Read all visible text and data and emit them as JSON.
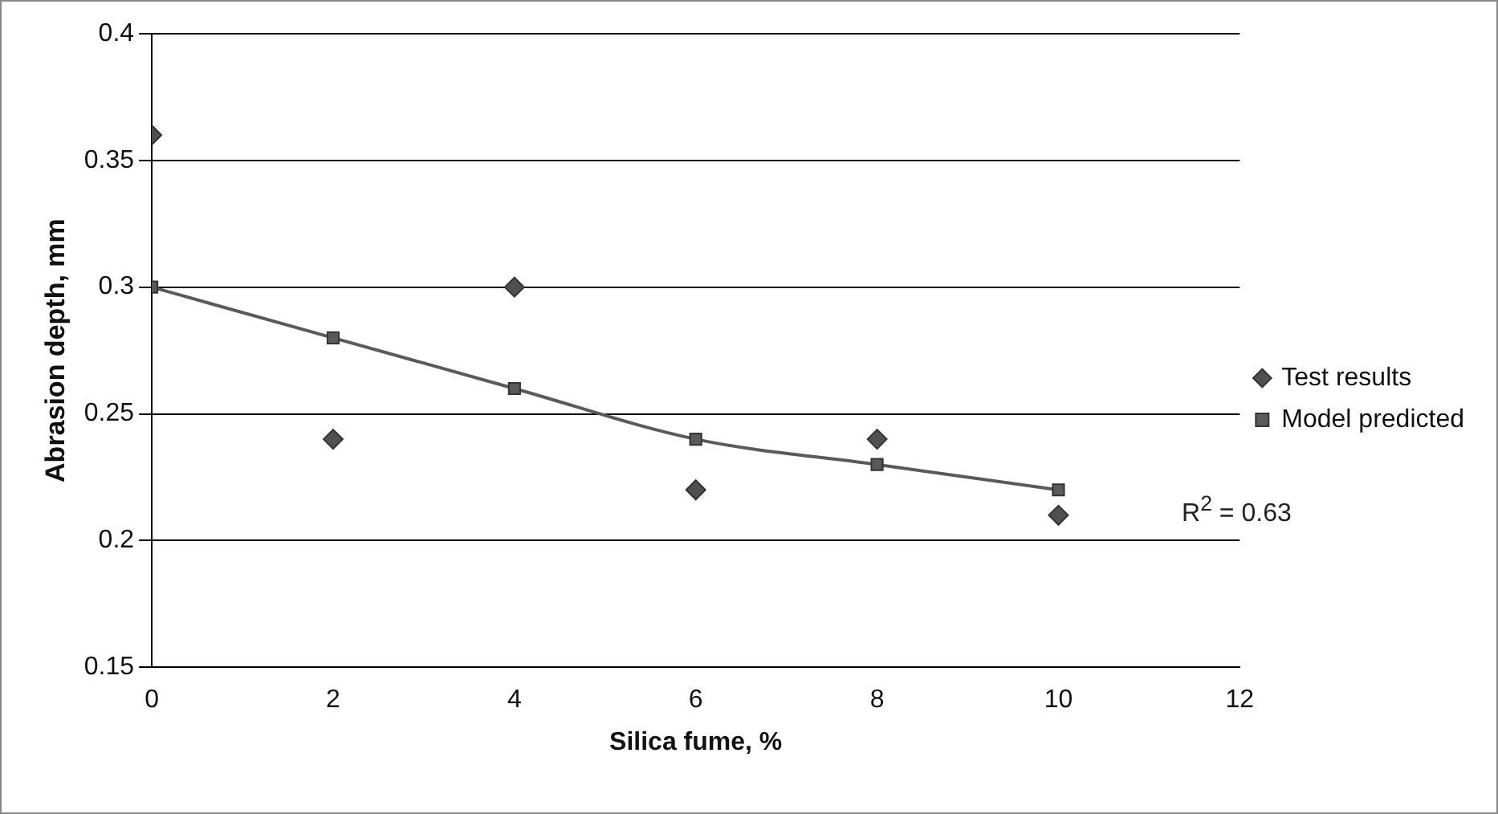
{
  "chart_data": {
    "type": "scatter",
    "xlabel": "Silica fume, %",
    "ylabel": "Abrasion depth, mm",
    "xlim": [
      0,
      12
    ],
    "xticks": [
      0,
      2,
      4,
      6,
      8,
      10,
      12
    ],
    "ylim": [
      0.15,
      0.4
    ],
    "yticks": [
      0.15,
      0.2,
      0.25,
      0.3,
      0.35,
      0.4
    ],
    "grid": "y",
    "legend": "right",
    "annotations": [
      "R$^{2}$ = 0.63"
    ],
    "series": [
      {
        "name": "Test results",
        "type": "scatter",
        "marker": "diamond",
        "color": "#505050",
        "x": [
          0,
          2,
          4,
          6,
          8,
          10
        ],
        "values": [
          0.36,
          0.24,
          0.3,
          0.22,
          0.24,
          0.21
        ]
      },
      {
        "name": "Model predicted",
        "type": "line",
        "marker": "square",
        "color": "#5a5a5a",
        "x": [
          0,
          2,
          4,
          6,
          8,
          10
        ],
        "values": [
          0.3,
          0.28,
          0.26,
          0.24,
          0.23,
          0.22
        ]
      }
    ]
  }
}
